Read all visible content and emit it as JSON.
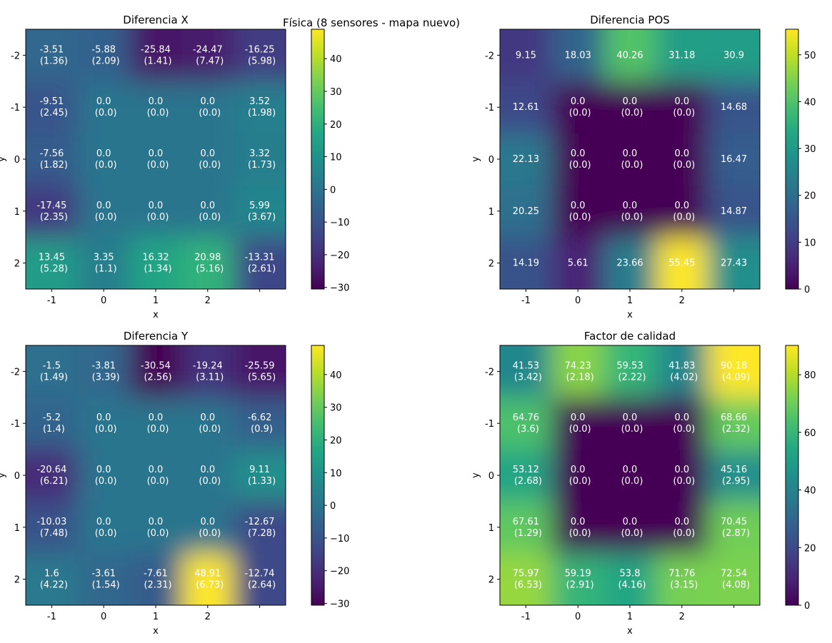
{
  "figure": {
    "suptitle": "Física (8 sensores - mapa nuevo)"
  },
  "colormap": "viridis",
  "chart_data": [
    {
      "type": "heatmap",
      "title": "Diferencia X",
      "xlabel": "x",
      "ylabel": "y",
      "x_ticks": [
        "-1",
        "0",
        "1",
        "2",
        ""
      ],
      "y_ticks": [
        "-2",
        "-1",
        "0",
        "1",
        "2"
      ],
      "values": [
        [
          -3.51,
          -5.88,
          -25.84,
          -24.47,
          -16.25
        ],
        [
          -9.51,
          0.0,
          0.0,
          0.0,
          3.52
        ],
        [
          -7.56,
          0.0,
          0.0,
          0.0,
          3.32
        ],
        [
          -17.45,
          0.0,
          0.0,
          0.0,
          5.99
        ],
        [
          13.45,
          3.35,
          16.32,
          20.98,
          -13.31
        ]
      ],
      "std": [
        [
          1.36,
          2.09,
          1.41,
          7.47,
          5.98
        ],
        [
          2.45,
          0.0,
          0.0,
          0.0,
          1.98
        ],
        [
          1.82,
          0.0,
          0.0,
          0.0,
          1.73
        ],
        [
          2.35,
          0.0,
          0.0,
          0.0,
          3.67
        ],
        [
          5.28,
          1.1,
          1.34,
          5.16,
          2.61
        ]
      ],
      "cell_labels": [
        [
          "-3.51\n(1.36)",
          "-5.88\n(2.09)",
          "-25.84\n(1.41)",
          "-24.47\n(7.47)",
          "-16.25\n(5.98)"
        ],
        [
          "-9.51\n(2.45)",
          "0.0\n(0.0)",
          "0.0\n(0.0)",
          "0.0\n(0.0)",
          "3.52\n(1.98)"
        ],
        [
          "-7.56\n(1.82)",
          "0.0\n(0.0)",
          "0.0\n(0.0)",
          "0.0\n(0.0)",
          "3.32\n(1.73)"
        ],
        [
          "-17.45\n(2.35)",
          "0.0\n(0.0)",
          "0.0\n(0.0)",
          "0.0\n(0.0)",
          "5.99\n(3.67)"
        ],
        [
          "13.45\n(5.28)",
          "3.35\n(1.1)",
          "16.32\n(1.34)",
          "20.98\n(5.16)",
          "-13.31\n(2.61)"
        ]
      ],
      "vmin": -30.5,
      "vmax": 49,
      "colorbar_ticks": [
        40,
        30,
        20,
        10,
        0,
        -10,
        -20,
        -30
      ],
      "colorbar_tick_labels": [
        "40",
        "30",
        "20",
        "10",
        "0",
        "−10",
        "−20",
        "−30"
      ]
    },
    {
      "type": "heatmap",
      "title": "Diferencia POS",
      "xlabel": "x",
      "ylabel": "y",
      "x_ticks": [
        "-1",
        "0",
        "1",
        "2",
        ""
      ],
      "y_ticks": [
        "-2",
        "-1",
        "0",
        "1",
        "2"
      ],
      "values": [
        [
          9.15,
          18.03,
          40.26,
          31.18,
          30.9
        ],
        [
          12.61,
          0.0,
          0.0,
          0.0,
          14.68
        ],
        [
          22.13,
          0.0,
          0.0,
          0.0,
          16.47
        ],
        [
          20.25,
          0.0,
          0.0,
          0.0,
          14.87
        ],
        [
          14.19,
          5.61,
          23.66,
          55.45,
          27.43
        ]
      ],
      "cell_labels": [
        [
          "9.15",
          "18.03",
          "40.26",
          "31.18",
          "30.9"
        ],
        [
          "12.61",
          "0.0\n(0.0)",
          "0.0\n(0.0)",
          "0.0\n(0.0)",
          "14.68"
        ],
        [
          "22.13",
          "0.0\n(0.0)",
          "0.0\n(0.0)",
          "0.0\n(0.0)",
          "16.47"
        ],
        [
          "20.25",
          "0.0\n(0.0)",
          "0.0\n(0.0)",
          "0.0\n(0.0)",
          "14.87"
        ],
        [
          "14.19",
          "5.61",
          "23.66",
          "55.45",
          "27.43"
        ]
      ],
      "vmin": 0,
      "vmax": 55.45,
      "colorbar_ticks": [
        50,
        40,
        30,
        20,
        10,
        0
      ],
      "colorbar_tick_labels": [
        "50",
        "40",
        "30",
        "20",
        "10",
        "0"
      ]
    },
    {
      "type": "heatmap",
      "title": "Diferencia Y",
      "xlabel": "x",
      "ylabel": "y",
      "x_ticks": [
        "-1",
        "0",
        "1",
        "2",
        ""
      ],
      "y_ticks": [
        "-2",
        "-1",
        "0",
        "1",
        "2"
      ],
      "values": [
        [
          -1.5,
          -3.81,
          -30.54,
          -19.24,
          -25.59
        ],
        [
          -5.2,
          0.0,
          0.0,
          0.0,
          -6.62
        ],
        [
          -20.64,
          0.0,
          0.0,
          0.0,
          9.11
        ],
        [
          -10.03,
          0.0,
          0.0,
          0.0,
          -12.67
        ],
        [
          1.6,
          -3.61,
          -7.61,
          48.91,
          -12.74
        ]
      ],
      "std": [
        [
          1.49,
          3.39,
          2.56,
          3.11,
          5.65
        ],
        [
          1.4,
          0.0,
          0.0,
          0.0,
          0.9
        ],
        [
          6.21,
          0.0,
          0.0,
          0.0,
          1.33
        ],
        [
          7.48,
          0.0,
          0.0,
          0.0,
          7.28
        ],
        [
          4.22,
          1.54,
          2.31,
          6.73,
          2.64
        ]
      ],
      "cell_labels": [
        [
          "-1.5\n(1.49)",
          "-3.81\n(3.39)",
          "-30.54\n(2.56)",
          "-19.24\n(3.11)",
          "-25.59\n(5.65)"
        ],
        [
          "-5.2\n(1.4)",
          "0.0\n(0.0)",
          "0.0\n(0.0)",
          "0.0\n(0.0)",
          "-6.62\n(0.9)"
        ],
        [
          "-20.64\n(6.21)",
          "0.0\n(0.0)",
          "0.0\n(0.0)",
          "0.0\n(0.0)",
          "9.11\n(1.33)"
        ],
        [
          "-10.03\n(7.48)",
          "0.0\n(0.0)",
          "0.0\n(0.0)",
          "0.0\n(0.0)",
          "-12.67\n(7.28)"
        ],
        [
          "1.6\n(4.22)",
          "-3.61\n(1.54)",
          "-7.61\n(2.31)",
          "48.91\n(6.73)",
          "-12.74\n(2.64)"
        ]
      ],
      "vmin": -30.54,
      "vmax": 48.91,
      "colorbar_ticks": [
        40,
        30,
        20,
        10,
        0,
        -10,
        -20,
        -30
      ],
      "colorbar_tick_labels": [
        "40",
        "30",
        "20",
        "10",
        "0",
        "−10",
        "−20",
        "−30"
      ]
    },
    {
      "type": "heatmap",
      "title": "Factor de calidad",
      "xlabel": "x",
      "ylabel": "y",
      "x_ticks": [
        "-1",
        "0",
        "1",
        "2",
        ""
      ],
      "y_ticks": [
        "-2",
        "-1",
        "0",
        "1",
        "2"
      ],
      "values": [
        [
          41.53,
          74.23,
          59.53,
          41.83,
          90.18
        ],
        [
          64.76,
          0.0,
          0.0,
          0.0,
          68.66
        ],
        [
          53.12,
          0.0,
          0.0,
          0.0,
          45.16
        ],
        [
          67.61,
          0.0,
          0.0,
          0.0,
          70.45
        ],
        [
          75.97,
          59.19,
          53.8,
          71.76,
          72.54
        ]
      ],
      "std": [
        [
          3.42,
          2.18,
          2.22,
          4.02,
          4.09
        ],
        [
          3.6,
          0.0,
          0.0,
          0.0,
          2.32
        ],
        [
          2.68,
          0.0,
          0.0,
          0.0,
          2.95
        ],
        [
          1.29,
          0.0,
          0.0,
          0.0,
          2.87
        ],
        [
          6.53,
          2.91,
          4.16,
          3.15,
          4.08
        ]
      ],
      "cell_labels": [
        [
          "41.53\n(3.42)",
          "74.23\n(2.18)",
          "59.53\n(2.22)",
          "41.83\n(4.02)",
          "90.18\n(4.09)"
        ],
        [
          "64.76\n(3.6)",
          "0.0\n(0.0)",
          "0.0\n(0.0)",
          "0.0\n(0.0)",
          "68.66\n(2.32)"
        ],
        [
          "53.12\n(2.68)",
          "0.0\n(0.0)",
          "0.0\n(0.0)",
          "0.0\n(0.0)",
          "45.16\n(2.95)"
        ],
        [
          "67.61\n(1.29)",
          "0.0\n(0.0)",
          "0.0\n(0.0)",
          "0.0\n(0.0)",
          "70.45\n(2.87)"
        ],
        [
          "75.97\n(6.53)",
          "59.19\n(2.91)",
          "53.8\n(4.16)",
          "71.76\n(3.15)",
          "72.54\n(4.08)"
        ]
      ],
      "vmin": 0,
      "vmax": 90.18,
      "colorbar_ticks": [
        80,
        60,
        40,
        20,
        0
      ],
      "colorbar_tick_labels": [
        "80",
        "60",
        "40",
        "20",
        "0"
      ]
    }
  ]
}
